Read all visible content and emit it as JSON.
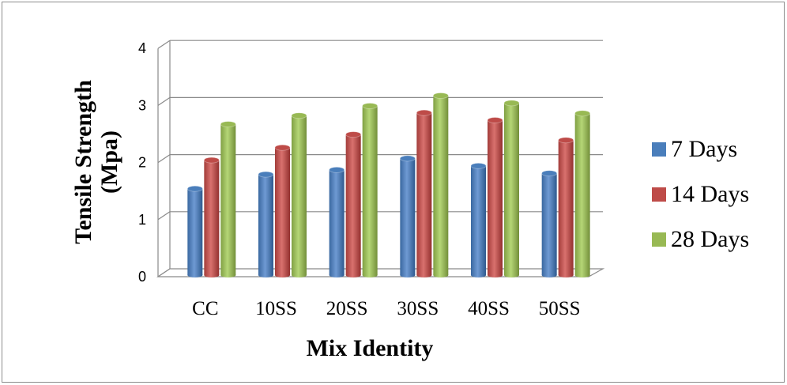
{
  "chart_data": {
    "type": "bar",
    "categories": [
      "CC",
      "10SS",
      "20SS",
      "30SS",
      "40SS",
      "50SS"
    ],
    "series": [
      {
        "name": "7 Days",
        "values": [
          1.5,
          1.75,
          1.83,
          2.03,
          1.9,
          1.77
        ],
        "color": "#4a7ebb"
      },
      {
        "name": "14 Days",
        "values": [
          2.0,
          2.22,
          2.45,
          2.83,
          2.7,
          2.35
        ],
        "color": "#be4b48"
      },
      {
        "name": "28 Days",
        "values": [
          2.63,
          2.78,
          2.95,
          3.13,
          3.0,
          2.82
        ],
        "color": "#98b954"
      }
    ],
    "yticks": [
      0,
      1,
      2,
      3,
      4
    ],
    "ylim": [
      0,
      4
    ],
    "xlabel": "Mix Identity",
    "ylabel_line1": "Tensile Strength",
    "ylabel_line2": "(Mpa)",
    "grid": true,
    "legend_position": "right"
  }
}
